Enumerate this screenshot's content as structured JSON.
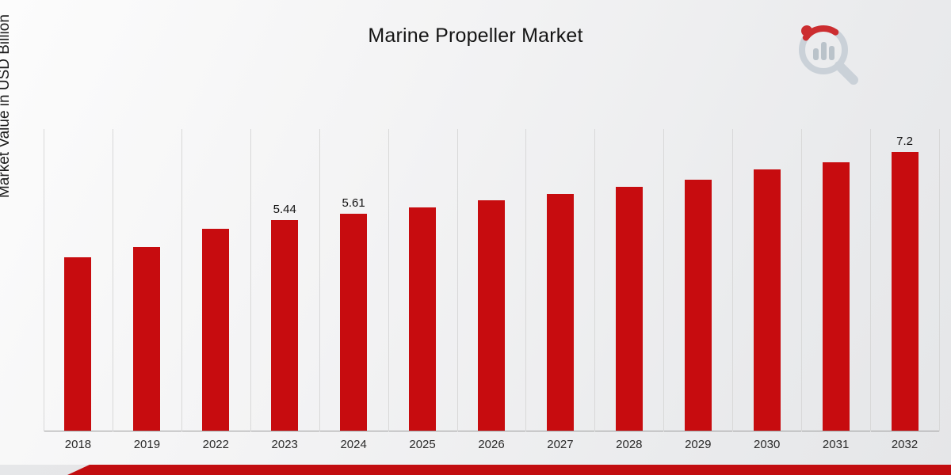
{
  "title": "Marine Propeller Market",
  "ylabel": "Market Value in USD Billion",
  "accent_color": "#c70c0f",
  "chart_data": {
    "type": "bar",
    "title": "Marine Propeller Market",
    "xlabel": "",
    "ylabel": "Market Value in USD Billion",
    "categories": [
      "2018",
      "2019",
      "2022",
      "2023",
      "2024",
      "2025",
      "2026",
      "2027",
      "2028",
      "2029",
      "2030",
      "2031",
      "2032"
    ],
    "values": [
      4.49,
      4.76,
      5.23,
      5.44,
      5.61,
      5.78,
      5.95,
      6.13,
      6.31,
      6.5,
      6.76,
      6.95,
      7.2
    ],
    "bar_labels": [
      "",
      "",
      "",
      "5.44",
      "5.61",
      "",
      "",
      "",
      "",
      "",
      "",
      "",
      "7.2"
    ],
    "ylim": [
      0,
      7.8
    ],
    "bar_color": "#c70c0f",
    "grid": "vertical",
    "legend": "none"
  }
}
